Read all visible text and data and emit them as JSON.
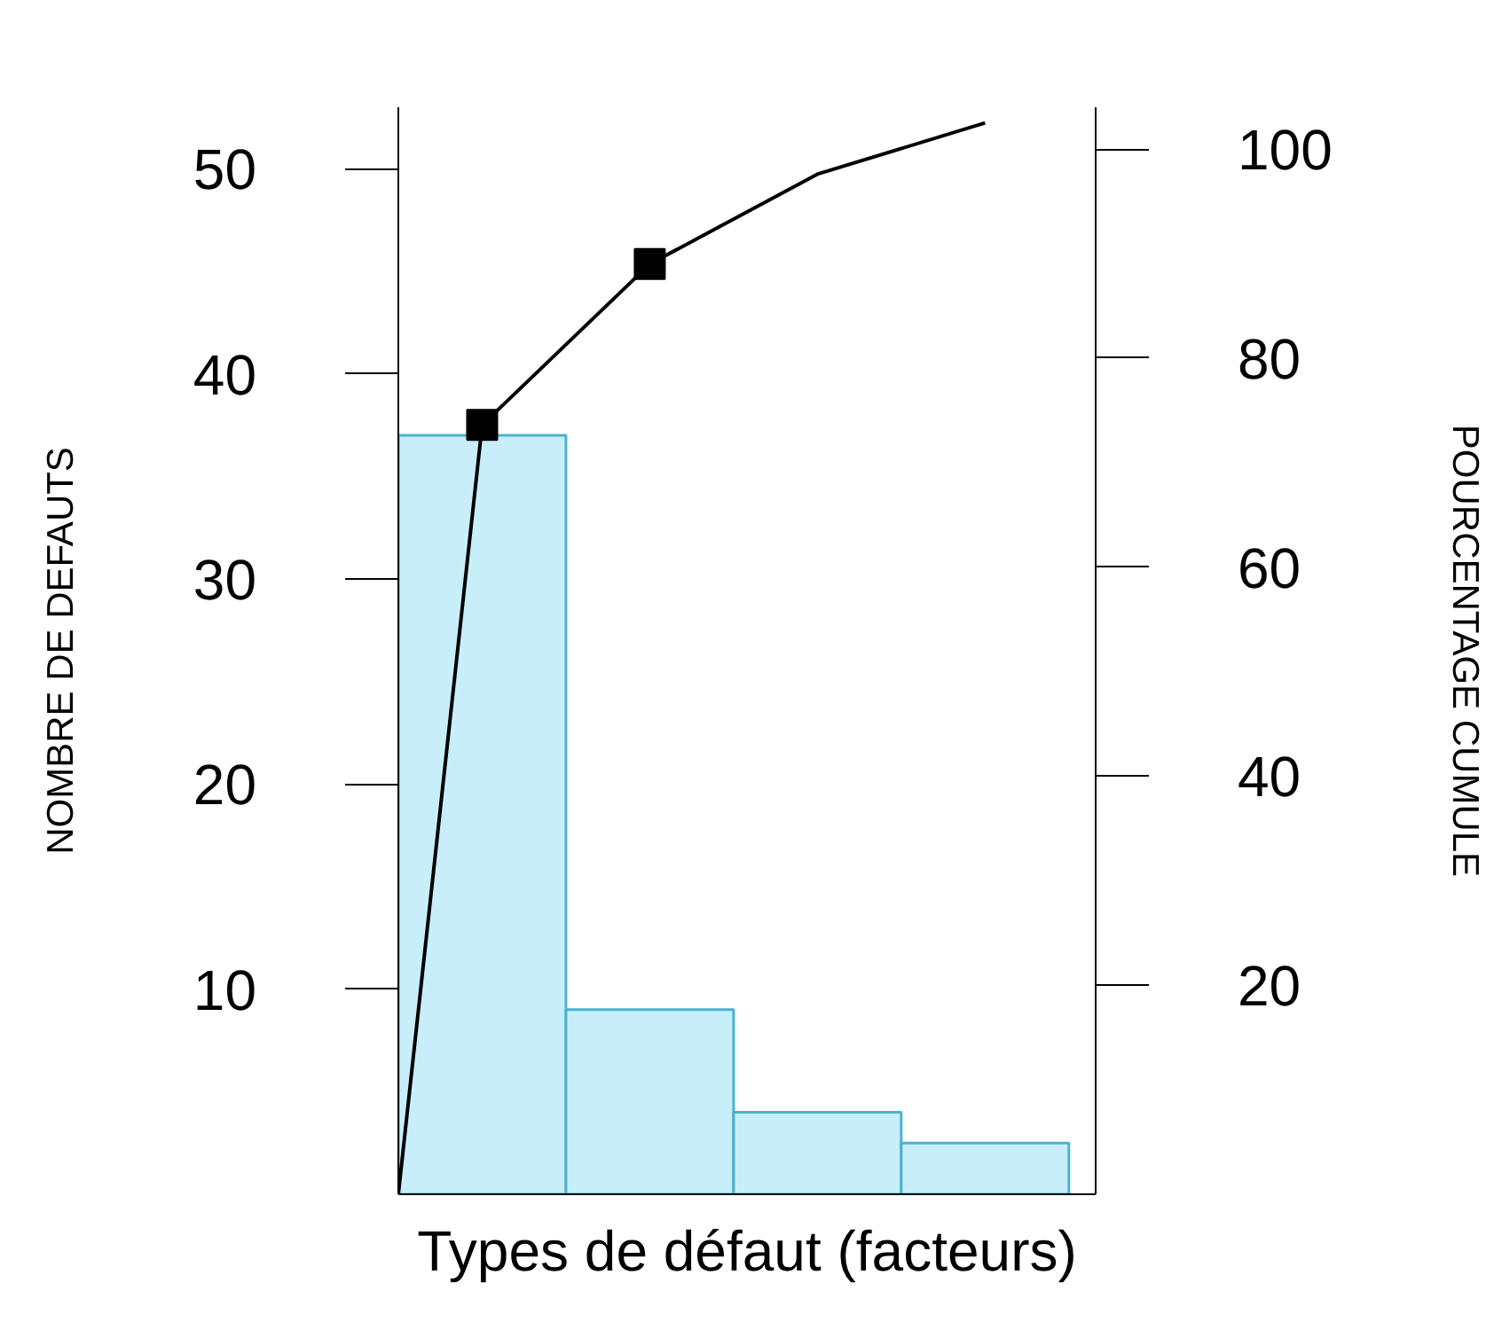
{
  "chart_data": {
    "type": "bar",
    "xlabel": "Types de défaut (facteurs)",
    "ylabel": "NOMBRE DE DEFAUTS",
    "y2label": "POURCENTAGE CUMULE",
    "categories": [
      null,
      null,
      null,
      null
    ],
    "series": [
      {
        "color": "#c8eefa",
        "values": [
          37,
          9,
          4,
          2.5
        ]
      },
      {
        "type": "line",
        "axis": "y2",
        "color": "#000000",
        "values": [
          73.6,
          89,
          97.6,
          102.5
        ]
      },
      {
        "type": "scatter",
        "axis": "y2",
        "color": "#000000",
        "marker": "square",
        "values": [
          73.6,
          89,
          null,
          null
        ]
      }
    ],
    "ylim": [
      0,
      53
    ],
    "yticks": [
      10,
      20,
      30,
      40,
      50
    ],
    "y2lim": [
      0,
      104
    ],
    "y2ticks": [
      20,
      40,
      60,
      80,
      100
    ],
    "grid": false
  }
}
